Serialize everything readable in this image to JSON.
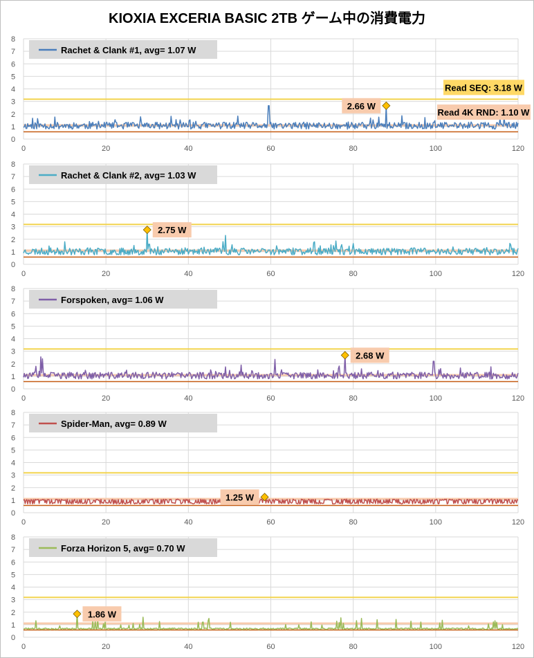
{
  "title": "KIOXIA EXCERIA BASIC 2TB ゲーム中の消費電力",
  "colors": {
    "read_seq_line": "#f2d34b",
    "read_4k_line": "#c55a11",
    "read_4k_band": "#f8cbad",
    "legend_bg": "#d9d9d9",
    "label_bg": "#f8cbad",
    "seq_label_bg": "#ffd966",
    "marker_fill": "#ffc000"
  },
  "chart_data": [
    {
      "type": "line",
      "series": [
        {
          "name": "Rachet & Clank #1,  avg=  1.07 W",
          "color": "#4a7ebb",
          "avg": 1.07,
          "max": 2.66,
          "seed": 11,
          "spikes": [
            [
              59.5,
              2.66
            ],
            [
              88,
              2.66
            ],
            [
              37,
              1.55
            ],
            [
              16,
              1.4
            ]
          ]
        }
      ],
      "xlim": [
        0,
        120
      ],
      "ylim": [
        0,
        8
      ],
      "x_ticks": [
        0,
        20,
        40,
        60,
        80,
        100,
        120
      ],
      "y_ticks": [
        0,
        1,
        2,
        3,
        4,
        5,
        6,
        7,
        8
      ],
      "reference_lines": [
        {
          "label": "Read SEQ:  3.18 W",
          "value": 3.18
        },
        {
          "label": "Read 4K RND:  1.10 W",
          "value": 1.1
        }
      ],
      "peak_label": "2.66 W",
      "peak_x": 88,
      "peak_y": 2.66
    },
    {
      "type": "line",
      "series": [
        {
          "name": "Rachet & Clank #2,  avg=  1.03 W",
          "color": "#4bacc6",
          "avg": 1.03,
          "max": 2.75,
          "seed": 23,
          "spikes": [
            [
              30,
              2.75
            ],
            [
              49,
              2.3
            ],
            [
              10,
              1.8
            ],
            [
              30.5,
              1.6
            ]
          ]
        }
      ],
      "xlim": [
        0,
        120
      ],
      "ylim": [
        0,
        8
      ],
      "x_ticks": [
        0,
        20,
        40,
        60,
        80,
        100,
        120
      ],
      "y_ticks": [
        0,
        1,
        2,
        3,
        4,
        5,
        6,
        7,
        8
      ],
      "peak_label": "2.75 W",
      "peak_x": 30,
      "peak_y": 2.75
    },
    {
      "type": "line",
      "series": [
        {
          "name": "Forspoken,  avg=  1.06 W",
          "color": "#7f5fa8",
          "avg": 1.06,
          "max": 2.68,
          "seed": 37,
          "spikes": [
            [
              4.2,
              2.55
            ],
            [
              4.6,
              2.4
            ],
            [
              61,
              2.35
            ],
            [
              78,
              2.68
            ],
            [
              99.5,
              2.2
            ],
            [
              49,
              1.75
            ],
            [
              82,
              1.6
            ]
          ]
        }
      ],
      "xlim": [
        0,
        120
      ],
      "ylim": [
        0,
        8
      ],
      "x_ticks": [
        0,
        20,
        40,
        60,
        80,
        100,
        120
      ],
      "y_ticks": [
        0,
        1,
        2,
        3,
        4,
        5,
        6,
        7,
        8
      ],
      "peak_label": "2.68 W",
      "peak_x": 78,
      "peak_y": 2.68
    },
    {
      "type": "line",
      "series": [
        {
          "name": "Spider-Man,  avg=  0.89 W",
          "color": "#c0504d",
          "avg": 0.89,
          "max": 1.25,
          "seed": 53,
          "spikes": [
            [
              58.5,
              1.25
            ]
          ]
        }
      ],
      "xlim": [
        0,
        120
      ],
      "ylim": [
        0,
        8
      ],
      "x_ticks": [
        0,
        20,
        40,
        60,
        80,
        100,
        120
      ],
      "y_ticks": [
        0,
        1,
        2,
        3,
        4,
        5,
        6,
        7,
        8
      ],
      "peak_label": "1.25 W",
      "peak_x": 58.5,
      "peak_y": 1.25
    },
    {
      "type": "line",
      "series": [
        {
          "name": "Forza Horizon 5,  avg=  0.70 W",
          "color": "#9bbb59",
          "avg": 0.7,
          "max": 1.86,
          "seed": 71,
          "spikes": [
            [
              13,
              1.86
            ],
            [
              29,
              1.6
            ],
            [
              45,
              1.5
            ],
            [
              77,
              1.55
            ],
            [
              82,
              1.5
            ],
            [
              18,
              1.45
            ]
          ]
        }
      ],
      "xlim": [
        0,
        120
      ],
      "ylim": [
        0,
        8
      ],
      "x_ticks": [
        0,
        20,
        40,
        60,
        80,
        100,
        120
      ],
      "y_ticks": [
        0,
        1,
        2,
        3,
        4,
        5,
        6,
        7,
        8
      ],
      "peak_label": "1.86 W",
      "peak_x": 13,
      "peak_y": 1.86
    }
  ]
}
